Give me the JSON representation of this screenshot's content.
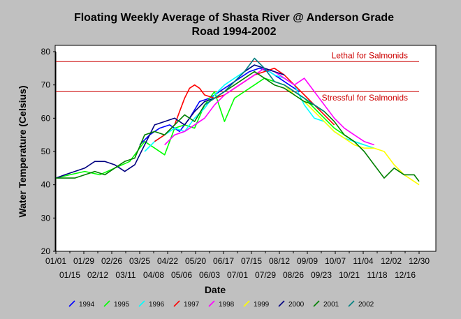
{
  "chart_data": {
    "type": "line",
    "title_line1": "Floating Weekly Average of Shasta River @ Anderson Grade",
    "title_line2": "Road 1994-2002",
    "xlabel": "Date",
    "ylabel": "Water Temperature (Celsius)",
    "ylim": [
      20,
      80
    ],
    "yticks": [
      "20",
      "30",
      "40",
      "50",
      "60",
      "70",
      "80"
    ],
    "xlim_days": [
      1,
      365
    ],
    "xticks_top": [
      "01/01",
      "01/29",
      "02/26",
      "03/25",
      "04/22",
      "05/20",
      "06/17",
      "07/15",
      "08/12",
      "09/09",
      "10/07",
      "11/04",
      "12/02",
      "12/30"
    ],
    "xticks_bottom": [
      "01/15",
      "02/12",
      "03/11",
      "04/08",
      "05/06",
      "06/03",
      "07/01",
      "07/29",
      "08/26",
      "09/23",
      "10/21",
      "11/18",
      "12/16"
    ],
    "grid": false,
    "legend_position": "bottom",
    "reference_lines": [
      {
        "label": "Lethal for Salmonids",
        "value": 77,
        "color": "#cc0000"
      },
      {
        "label": "Stressful for Salmonids",
        "value": 68,
        "color": "#cc0000"
      }
    ],
    "series": [
      {
        "name": "1994",
        "color": "#0000ff",
        "x": [
          85,
          95,
          105,
          115,
          125,
          135,
          145,
          155,
          165,
          175,
          185,
          195,
          205,
          215,
          225,
          235,
          245
        ],
        "values": [
          52,
          55,
          57,
          58,
          56,
          60,
          65,
          66,
          68,
          70,
          72,
          74,
          75,
          74,
          72,
          70,
          68
        ]
      },
      {
        "name": "1995",
        "color": "#00ff00",
        "x": [
          1,
          15,
          30,
          45,
          60,
          75,
          90,
          100,
          110,
          115,
          120,
          130,
          140,
          150,
          160,
          170,
          180,
          190,
          200,
          210,
          220,
          230,
          240,
          250,
          260,
          270,
          280,
          290,
          300,
          310
        ],
        "values": [
          42,
          43,
          44,
          43,
          45,
          47,
          53,
          51,
          49,
          53,
          57,
          58,
          57,
          64,
          68,
          59,
          66,
          68,
          70,
          72,
          71,
          70,
          68,
          66,
          63,
          60,
          57,
          55,
          53,
          52
        ]
      },
      {
        "name": "1996",
        "color": "#00ffff",
        "x": [
          90,
          100,
          110,
          120,
          130,
          140,
          150,
          160,
          170,
          180,
          190,
          200,
          210,
          220,
          230,
          240,
          250,
          260,
          270,
          280,
          290,
          300,
          310,
          320
        ],
        "values": [
          50,
          53,
          55,
          57,
          56,
          60,
          63,
          67,
          70,
          72,
          74,
          76,
          75,
          73,
          72,
          70,
          64,
          60,
          59,
          56,
          54,
          53,
          52,
          51
        ]
      },
      {
        "name": "1997",
        "color": "#ff0000",
        "x": [
          100,
          110,
          120,
          125,
          130,
          135,
          140,
          145,
          150,
          160,
          170,
          180,
          190,
          200,
          210,
          220,
          230,
          240,
          250,
          260,
          270,
          280
        ],
        "values": [
          53,
          55,
          58,
          62,
          66,
          69,
          70,
          69,
          67,
          66,
          67,
          69,
          71,
          73,
          74,
          75,
          73,
          70,
          67,
          64,
          61,
          58
        ]
      },
      {
        "name": "1998",
        "color": "#ff00ff",
        "x": [
          110,
          120,
          130,
          140,
          150,
          160,
          170,
          180,
          190,
          200,
          210,
          220,
          230,
          240,
          250,
          260,
          270,
          280,
          290,
          300,
          310,
          320
        ],
        "values": [
          52,
          55,
          56,
          58,
          60,
          64,
          67,
          69,
          71,
          73,
          75,
          74,
          72,
          70,
          72,
          68,
          64,
          60,
          57,
          55,
          53,
          52
        ]
      },
      {
        "name": "1999",
        "color": "#ffff00",
        "x": [
          230,
          240,
          250,
          260,
          270,
          280,
          290,
          300,
          310,
          320,
          330,
          340,
          350,
          360,
          365
        ],
        "values": [
          70,
          67,
          65,
          62,
          59,
          56,
          54,
          52,
          51,
          51,
          50,
          46,
          43,
          41,
          40
        ]
      },
      {
        "name": "2000",
        "color": "#000080",
        "x": [
          1,
          10,
          20,
          30,
          40,
          50,
          60,
          70,
          80,
          90,
          100,
          110,
          120,
          130,
          140,
          150,
          160,
          170,
          180,
          190,
          200,
          210,
          220,
          230
        ],
        "values": [
          42,
          43,
          44,
          45,
          47,
          47,
          46,
          44,
          46,
          52,
          58,
          59,
          60,
          58,
          62,
          65,
          66,
          68,
          71,
          74,
          76,
          75,
          74,
          73
        ]
      },
      {
        "name": "2001",
        "color": "#008000",
        "x": [
          1,
          10,
          20,
          30,
          40,
          50,
          60,
          70,
          80,
          90,
          100,
          110,
          120,
          130,
          140,
          150,
          160,
          170,
          180,
          190,
          200,
          210,
          220,
          230,
          240,
          250,
          260,
          270,
          280,
          290,
          300,
          310,
          320,
          330,
          340,
          350,
          360,
          365
        ],
        "values": [
          42,
          42,
          42,
          43,
          44,
          43,
          45,
          47,
          48,
          55,
          56,
          55,
          58,
          61,
          59,
          64,
          66,
          68,
          70,
          72,
          74,
          72,
          70,
          69,
          67,
          65,
          64,
          62,
          59,
          55,
          53,
          50,
          46,
          42,
          45,
          43,
          43,
          41
        ]
      },
      {
        "name": "2002",
        "color": "#008080",
        "x": [
          150,
          160,
          170,
          180,
          190,
          200,
          210,
          220,
          230,
          240,
          250,
          260,
          270
        ],
        "values": [
          64,
          66,
          68,
          71,
          74,
          78,
          75,
          71,
          70,
          68,
          66,
          64,
          62
        ]
      }
    ]
  }
}
